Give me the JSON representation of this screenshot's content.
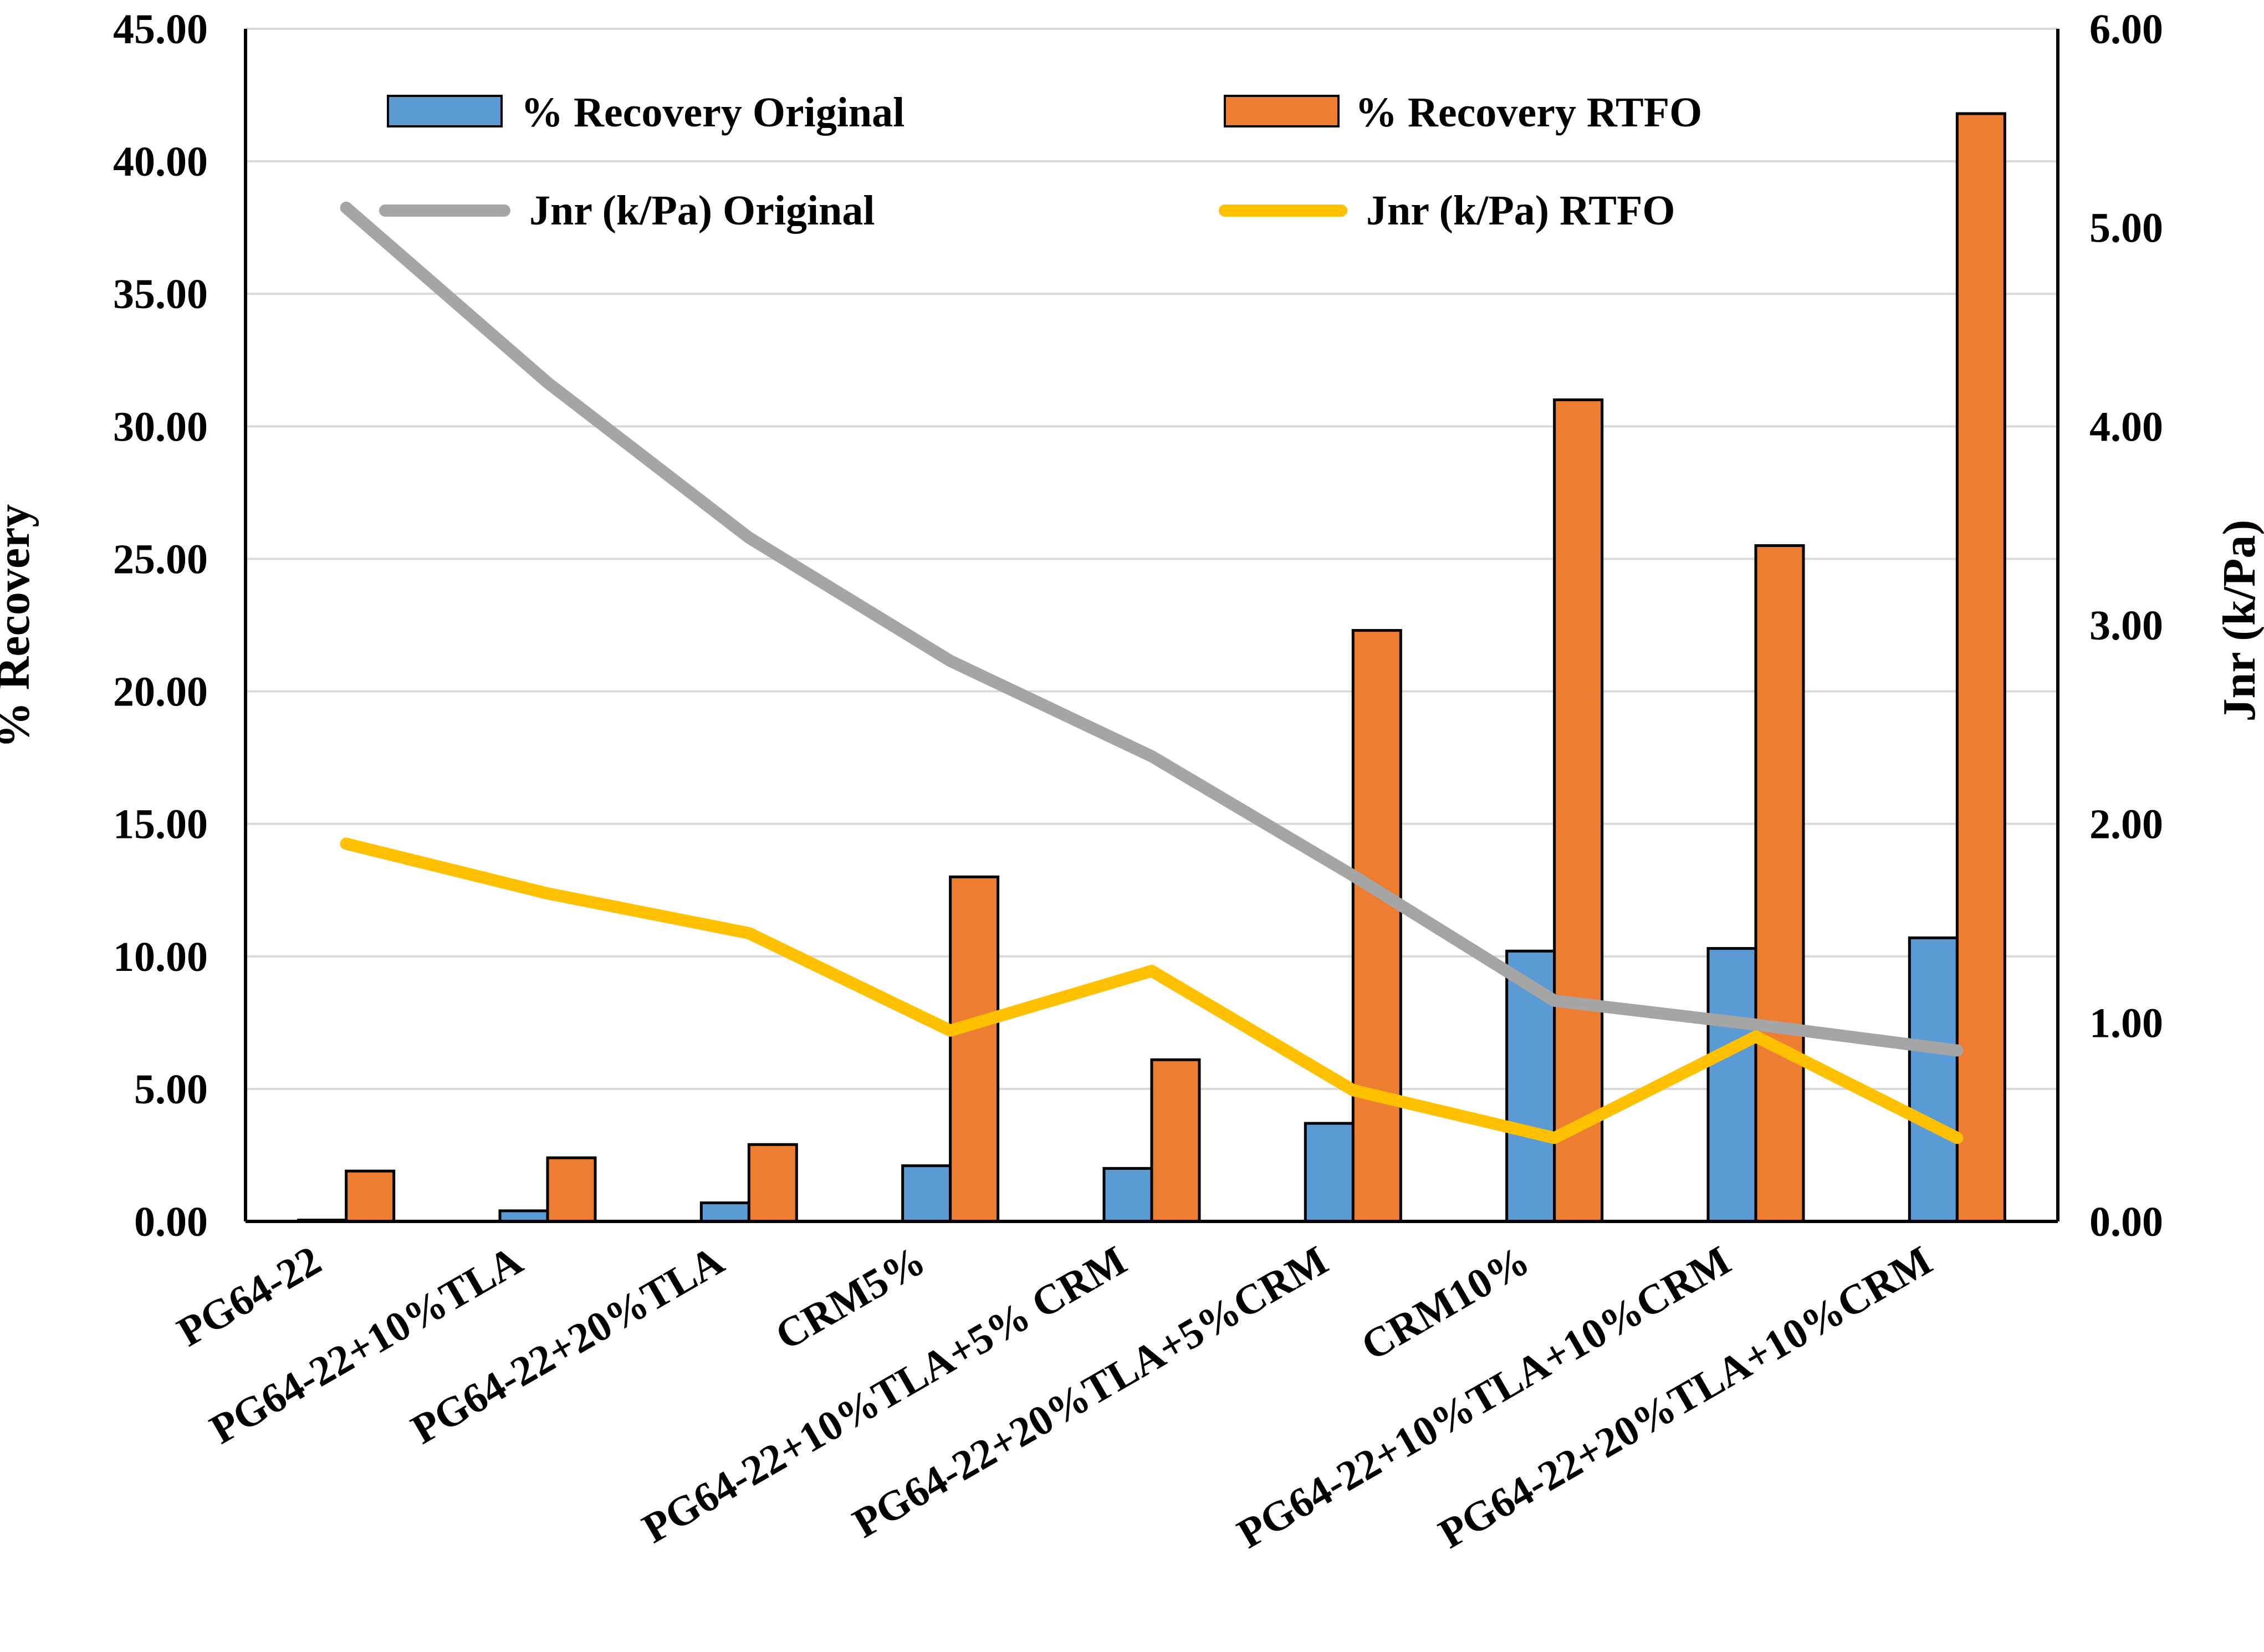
{
  "chart_data": {
    "type": "bar",
    "categories": [
      "PG64-22",
      "PG64-22+10%TLA",
      "PG64-22+20%TLA",
      "CRM5%",
      "PG64-22+10%TLA+5% CRM",
      "PG64-22+20%TLA+5%CRM",
      "CRM10%",
      "PG64-22+10%TLA+10%CRM",
      "PG64-22+20%TLA+10%CRM"
    ],
    "series": [
      {
        "name": "% Recovery Original",
        "kind": "bar",
        "axis": "left",
        "color": "#5b9bd5",
        "values": [
          0.05,
          0.4,
          0.7,
          2.1,
          2.0,
          3.7,
          10.2,
          10.3,
          10.7
        ]
      },
      {
        "name": "% Recovery RTFO",
        "kind": "bar",
        "axis": "left",
        "color": "#ed7d31",
        "values": [
          1.9,
          2.4,
          2.9,
          13.0,
          6.1,
          22.3,
          31.0,
          25.5,
          41.8
        ]
      },
      {
        "name": "Jnr (k/Pa) Original",
        "kind": "line",
        "axis": "right",
        "color": "#a5a5a5",
        "values": [
          5.1,
          4.22,
          3.44,
          2.82,
          2.34,
          1.74,
          1.11,
          0.99,
          0.86
        ]
      },
      {
        "name": "Jnr (k/Pa) RTFO",
        "kind": "line",
        "axis": "right",
        "color": "#ffc000",
        "values": [
          1.9,
          1.65,
          1.45,
          0.96,
          1.26,
          0.66,
          0.42,
          0.93,
          0.42
        ]
      }
    ],
    "ylabel": "% Recovery",
    "ylim": [
      0,
      45
    ],
    "yticks": [
      "0.00",
      "5.00",
      "10.00",
      "15.00",
      "20.00",
      "25.00",
      "30.00",
      "35.00",
      "40.00",
      "45.00"
    ],
    "y2label": "Jnr  (k/Pa)",
    "y2lim": [
      0,
      6
    ],
    "y2ticks": [
      "0.00",
      "1.00",
      "2.00",
      "3.00",
      "4.00",
      "5.00",
      "6.00"
    ],
    "grid": true,
    "legend_position": "top"
  }
}
